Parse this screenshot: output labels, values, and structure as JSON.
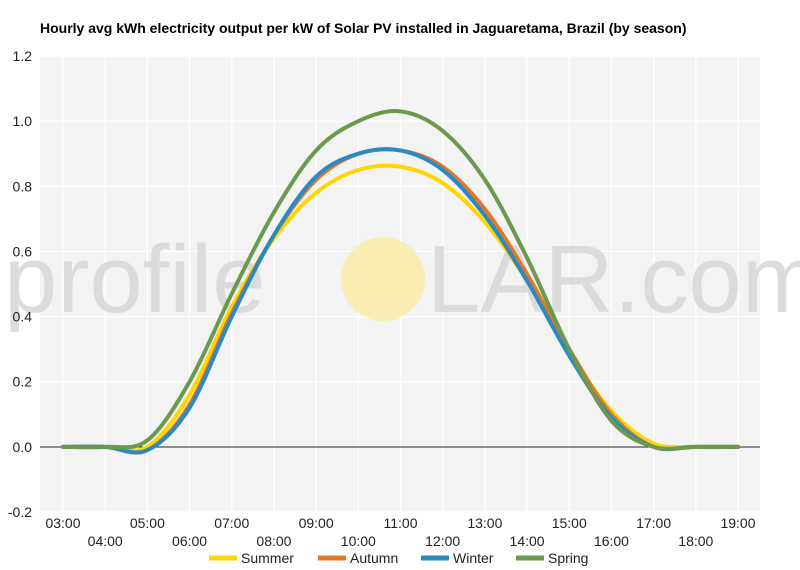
{
  "chart_data": {
    "type": "line",
    "title": "Hourly avg kWh electricity output per kW of Solar PV installed in Jaguaretama, Brazil (by season)",
    "xlabel": "",
    "ylabel": "",
    "x": [
      "03:00",
      "04:00",
      "05:00",
      "06:00",
      "07:00",
      "08:00",
      "09:00",
      "10:00",
      "11:00",
      "12:00",
      "13:00",
      "14:00",
      "15:00",
      "16:00",
      "17:00",
      "18:00",
      "19:00"
    ],
    "ylim": [
      -0.2,
      1.2
    ],
    "yticks": [
      "-0.2",
      "0.0",
      "0.2",
      "0.4",
      "0.6",
      "0.8",
      "1.0",
      "1.2"
    ],
    "grid": true,
    "legend_position": "bottom",
    "series": [
      {
        "name": "Summer",
        "color": "#ffd600",
        "values": [
          0,
          0,
          0,
          0.16,
          0.43,
          0.64,
          0.78,
          0.85,
          0.86,
          0.81,
          0.69,
          0.51,
          0.29,
          0.11,
          0.01,
          0,
          0
        ]
      },
      {
        "name": "Autumn",
        "color": "#e87722",
        "values": [
          0,
          0,
          -0.01,
          0.13,
          0.41,
          0.65,
          0.82,
          0.9,
          0.91,
          0.86,
          0.73,
          0.53,
          0.3,
          0.1,
          0,
          0,
          0
        ]
      },
      {
        "name": "Winter",
        "color": "#2a8ac4",
        "values": [
          0,
          0,
          -0.01,
          0.12,
          0.4,
          0.65,
          0.83,
          0.9,
          0.91,
          0.85,
          0.71,
          0.51,
          0.28,
          0.09,
          0,
          0,
          0
        ]
      },
      {
        "name": "Spring",
        "color": "#6a9a4e",
        "values": [
          0,
          0,
          0.02,
          0.2,
          0.47,
          0.72,
          0.91,
          1.0,
          1.03,
          0.97,
          0.82,
          0.58,
          0.3,
          0.08,
          0,
          0,
          0
        ]
      }
    ]
  },
  "watermark": {
    "left": "profile",
    "right": "LAR.com",
    "sun_color": "#fbeb9f"
  }
}
